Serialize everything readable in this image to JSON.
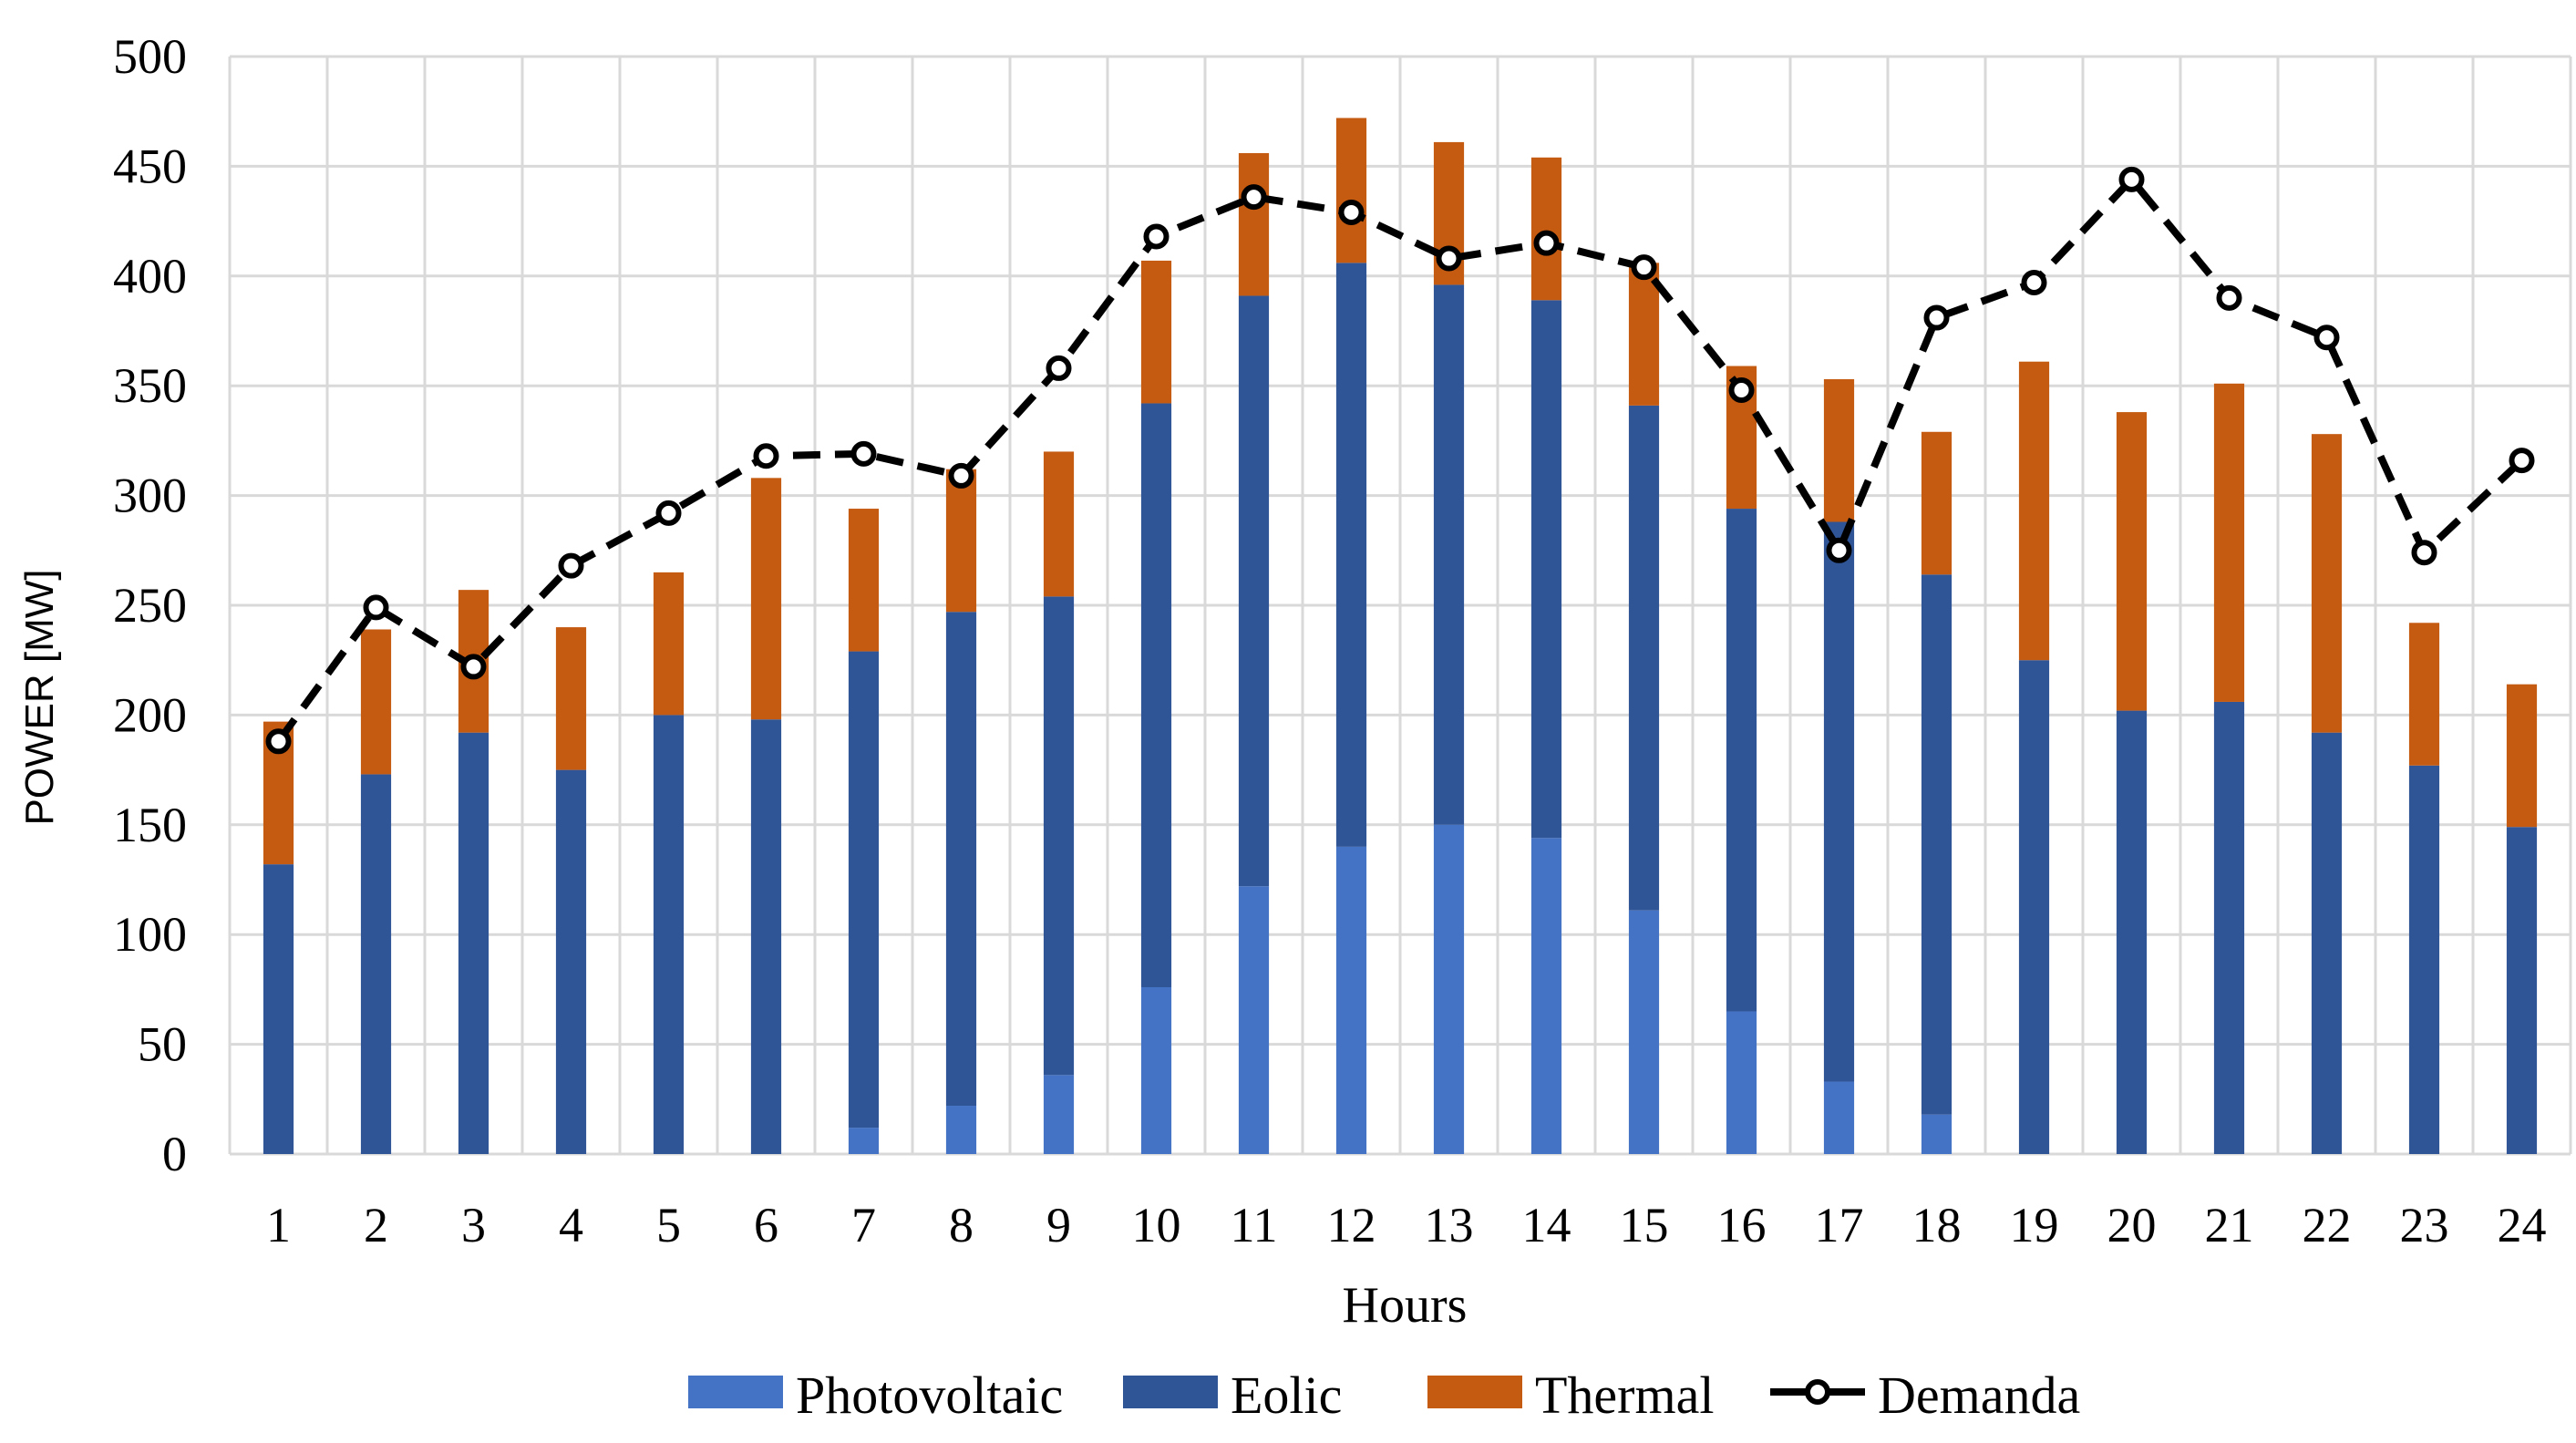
{
  "chart_data": {
    "type": "bar",
    "stacked": true,
    "xlabel": "Hours",
    "ylabel": "POWER [MW]",
    "ylim": [
      0,
      500
    ],
    "yticks": [
      0,
      50,
      100,
      150,
      200,
      250,
      300,
      350,
      400,
      450,
      500
    ],
    "grid": true,
    "legend_position": "bottom",
    "categories": [
      "1",
      "2",
      "3",
      "4",
      "5",
      "6",
      "7",
      "8",
      "9",
      "10",
      "11",
      "12",
      "13",
      "14",
      "15",
      "16",
      "17",
      "18",
      "19",
      "20",
      "21",
      "22",
      "23",
      "24"
    ],
    "series": [
      {
        "name": "Photovoltaic",
        "kind": "bar",
        "color": "#4472c4",
        "values": [
          0,
          0,
          0,
          0,
          0,
          0,
          12,
          22,
          36,
          76,
          122,
          140,
          150,
          144,
          111,
          65,
          33,
          18,
          0,
          0,
          0,
          0,
          0,
          0
        ]
      },
      {
        "name": "Eolic",
        "kind": "bar",
        "color": "#2f5597",
        "values": [
          132,
          173,
          192,
          175,
          200,
          198,
          217,
          225,
          218,
          266,
          269,
          266,
          246,
          245,
          230,
          229,
          255,
          246,
          225,
          202,
          206,
          192,
          177,
          149
        ]
      },
      {
        "name": "Thermal",
        "kind": "bar",
        "color": "#c55a11",
        "values": [
          65,
          66,
          65,
          65,
          65,
          110,
          65,
          65,
          66,
          65,
          65,
          66,
          65,
          65,
          65,
          65,
          65,
          65,
          136,
          136,
          145,
          136,
          65,
          65
        ]
      },
      {
        "name": "Demanda",
        "kind": "line",
        "color": "#000000",
        "style": "dashed",
        "marker": "circle",
        "values": [
          188,
          249,
          222,
          268,
          292,
          318,
          319,
          309,
          358,
          418,
          436,
          429,
          408,
          415,
          404,
          348,
          275,
          381,
          397,
          444,
          390,
          372,
          274,
          316
        ]
      }
    ]
  }
}
